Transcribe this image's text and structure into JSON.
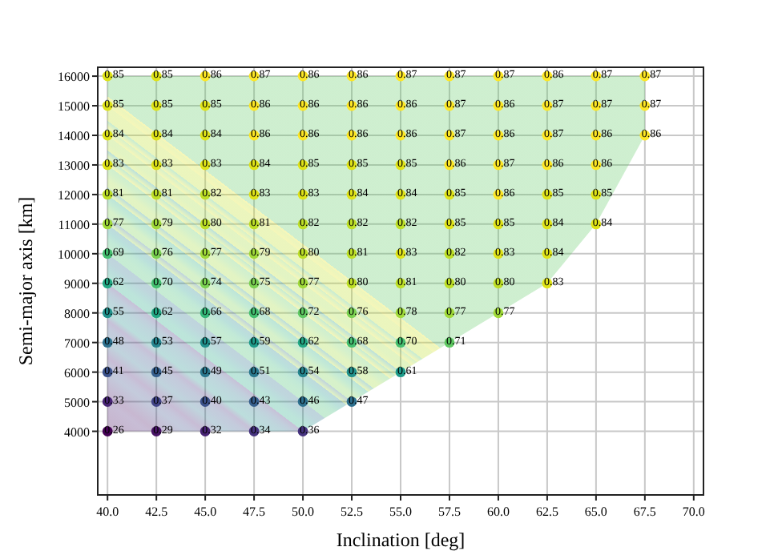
{
  "chart_data": {
    "type": "scatter",
    "xlabel": "Inclination [deg]",
    "ylabel": "Semi-major axis [km]",
    "grid": true,
    "marker": "circle",
    "xlim": [
      39.5,
      70.5
    ],
    "ylim": [
      1850,
      16300
    ],
    "annotations": [
      {
        "text": "0.85",
        "x": 40,
        "y": 16000
      },
      {
        "text": "0.85",
        "x": 42.5,
        "y": 16000
      },
      {
        "text": "0.86",
        "x": 45,
        "y": 16000
      },
      {
        "text": "0.87",
        "x": 47.5,
        "y": 16000
      },
      {
        "text": "0.86",
        "x": 50,
        "y": 16000
      },
      {
        "text": "0.86",
        "x": 52.5,
        "y": 16000
      },
      {
        "text": "0.87",
        "x": 55,
        "y": 16000
      },
      {
        "text": "0.87",
        "x": 57.5,
        "y": 16000
      },
      {
        "text": "0.87",
        "x": 60,
        "y": 16000
      },
      {
        "text": "0.86",
        "x": 62.5,
        "y": 16000
      },
      {
        "text": "0.87",
        "x": 65,
        "y": 16000
      },
      {
        "text": "0.87",
        "x": 67.5,
        "y": 16000
      },
      {
        "text": "0.85",
        "x": 40,
        "y": 15000
      },
      {
        "text": "0.85",
        "x": 42.5,
        "y": 15000
      },
      {
        "text": "0.85",
        "x": 45,
        "y": 15000
      },
      {
        "text": "0.86",
        "x": 47.5,
        "y": 15000
      },
      {
        "text": "0.86",
        "x": 50,
        "y": 15000
      },
      {
        "text": "0.86",
        "x": 52.5,
        "y": 15000
      },
      {
        "text": "0.86",
        "x": 55,
        "y": 15000
      },
      {
        "text": "0.87",
        "x": 57.5,
        "y": 15000
      },
      {
        "text": "0.86",
        "x": 60,
        "y": 15000
      },
      {
        "text": "0.87",
        "x": 62.5,
        "y": 15000
      },
      {
        "text": "0.87",
        "x": 65,
        "y": 15000
      },
      {
        "text": "0.87",
        "x": 67.5,
        "y": 15000
      },
      {
        "text": "0.84",
        "x": 40,
        "y": 14000
      },
      {
        "text": "0.84",
        "x": 42.5,
        "y": 14000
      },
      {
        "text": "0.84",
        "x": 45,
        "y": 14000
      },
      {
        "text": "0.86",
        "x": 47.5,
        "y": 14000
      },
      {
        "text": "0.86",
        "x": 50,
        "y": 14000
      },
      {
        "text": "0.86",
        "x": 52.5,
        "y": 14000
      },
      {
        "text": "0.86",
        "x": 55,
        "y": 14000
      },
      {
        "text": "0.87",
        "x": 57.5,
        "y": 14000
      },
      {
        "text": "0.86",
        "x": 60,
        "y": 14000
      },
      {
        "text": "0.87",
        "x": 62.5,
        "y": 14000
      },
      {
        "text": "0.86",
        "x": 65,
        "y": 14000
      },
      {
        "text": "0.86",
        "x": 67.5,
        "y": 14000
      },
      {
        "text": "0.83",
        "x": 40,
        "y": 13000
      },
      {
        "text": "0.83",
        "x": 42.5,
        "y": 13000
      },
      {
        "text": "0.83",
        "x": 45,
        "y": 13000
      },
      {
        "text": "0.84",
        "x": 47.5,
        "y": 13000
      },
      {
        "text": "0.85",
        "x": 50,
        "y": 13000
      },
      {
        "text": "0.85",
        "x": 52.5,
        "y": 13000
      },
      {
        "text": "0.85",
        "x": 55,
        "y": 13000
      },
      {
        "text": "0.86",
        "x": 57.5,
        "y": 13000
      },
      {
        "text": "0.87",
        "x": 60,
        "y": 13000
      },
      {
        "text": "0.86",
        "x": 62.5,
        "y": 13000
      },
      {
        "text": "0.86",
        "x": 65,
        "y": 13000
      },
      {
        "text": "0.81",
        "x": 40,
        "y": 12000
      },
      {
        "text": "0.81",
        "x": 42.5,
        "y": 12000
      },
      {
        "text": "0.82",
        "x": 45,
        "y": 12000
      },
      {
        "text": "0.83",
        "x": 47.5,
        "y": 12000
      },
      {
        "text": "0.83",
        "x": 50,
        "y": 12000
      },
      {
        "text": "0.84",
        "x": 52.5,
        "y": 12000
      },
      {
        "text": "0.84",
        "x": 55,
        "y": 12000
      },
      {
        "text": "0.85",
        "x": 57.5,
        "y": 12000
      },
      {
        "text": "0.86",
        "x": 60,
        "y": 12000
      },
      {
        "text": "0.85",
        "x": 62.5,
        "y": 12000
      },
      {
        "text": "0.85",
        "x": 65,
        "y": 12000
      },
      {
        "text": "0.77",
        "x": 40,
        "y": 11000
      },
      {
        "text": "0.79",
        "x": 42.5,
        "y": 11000
      },
      {
        "text": "0.80",
        "x": 45,
        "y": 11000
      },
      {
        "text": "0.81",
        "x": 47.5,
        "y": 11000
      },
      {
        "text": "0.82",
        "x": 50,
        "y": 11000
      },
      {
        "text": "0.82",
        "x": 52.5,
        "y": 11000
      },
      {
        "text": "0.82",
        "x": 55,
        "y": 11000
      },
      {
        "text": "0.85",
        "x": 57.5,
        "y": 11000
      },
      {
        "text": "0.85",
        "x": 60,
        "y": 11000
      },
      {
        "text": "0.84",
        "x": 62.5,
        "y": 11000
      },
      {
        "text": "0.84",
        "x": 65,
        "y": 11000
      },
      {
        "text": "0.69",
        "x": 40,
        "y": 10000
      },
      {
        "text": "0.76",
        "x": 42.5,
        "y": 10000
      },
      {
        "text": "0.77",
        "x": 45,
        "y": 10000
      },
      {
        "text": "0.79",
        "x": 47.5,
        "y": 10000
      },
      {
        "text": "0.80",
        "x": 50,
        "y": 10000
      },
      {
        "text": "0.81",
        "x": 52.5,
        "y": 10000
      },
      {
        "text": "0.83",
        "x": 55,
        "y": 10000
      },
      {
        "text": "0.82",
        "x": 57.5,
        "y": 10000
      },
      {
        "text": "0.83",
        "x": 60,
        "y": 10000
      },
      {
        "text": "0.84",
        "x": 62.5,
        "y": 10000
      },
      {
        "text": "0.62",
        "x": 40,
        "y": 9000
      },
      {
        "text": "0.70",
        "x": 42.5,
        "y": 9000
      },
      {
        "text": "0.74",
        "x": 45,
        "y": 9000
      },
      {
        "text": "0.75",
        "x": 47.5,
        "y": 9000
      },
      {
        "text": "0.77",
        "x": 50,
        "y": 9000
      },
      {
        "text": "0.80",
        "x": 52.5,
        "y": 9000
      },
      {
        "text": "0.81",
        "x": 55,
        "y": 9000
      },
      {
        "text": "0.80",
        "x": 57.5,
        "y": 9000
      },
      {
        "text": "0.80",
        "x": 60,
        "y": 9000
      },
      {
        "text": "0.83",
        "x": 62.5,
        "y": 9000
      },
      {
        "text": "0.55",
        "x": 40,
        "y": 8000
      },
      {
        "text": "0.62",
        "x": 42.5,
        "y": 8000
      },
      {
        "text": "0.66",
        "x": 45,
        "y": 8000
      },
      {
        "text": "0.68",
        "x": 47.5,
        "y": 8000
      },
      {
        "text": "0.72",
        "x": 50,
        "y": 8000
      },
      {
        "text": "0.76",
        "x": 52.5,
        "y": 8000
      },
      {
        "text": "0.78",
        "x": 55,
        "y": 8000
      },
      {
        "text": "0.77",
        "x": 57.5,
        "y": 8000
      },
      {
        "text": "0.77",
        "x": 60,
        "y": 8000
      },
      {
        "text": "0.48",
        "x": 40,
        "y": 7000
      },
      {
        "text": "0.53",
        "x": 42.5,
        "y": 7000
      },
      {
        "text": "0.57",
        "x": 45,
        "y": 7000
      },
      {
        "text": "0.59",
        "x": 47.5,
        "y": 7000
      },
      {
        "text": "0.62",
        "x": 50,
        "y": 7000
      },
      {
        "text": "0.68",
        "x": 52.5,
        "y": 7000
      },
      {
        "text": "0.70",
        "x": 55,
        "y": 7000
      },
      {
        "text": "0.71",
        "x": 57.5,
        "y": 7000
      },
      {
        "text": "0.41",
        "x": 40,
        "y": 6000
      },
      {
        "text": "0.45",
        "x": 42.5,
        "y": 6000
      },
      {
        "text": "0.49",
        "x": 45,
        "y": 6000
      },
      {
        "text": "0.51",
        "x": 47.5,
        "y": 6000
      },
      {
        "text": "0.54",
        "x": 50,
        "y": 6000
      },
      {
        "text": "0.58",
        "x": 52.5,
        "y": 6000
      },
      {
        "text": "0.61",
        "x": 55,
        "y": 6000
      },
      {
        "text": "0.33",
        "x": 40,
        "y": 5000
      },
      {
        "text": "0.37",
        "x": 42.5,
        "y": 5000
      },
      {
        "text": "0.40",
        "x": 45,
        "y": 5000
      },
      {
        "text": "0.43",
        "x": 47.5,
        "y": 5000
      },
      {
        "text": "0.46",
        "x": 50,
        "y": 5000
      },
      {
        "text": "0.47",
        "x": 52.5,
        "y": 5000
      },
      {
        "text": "0.26",
        "x": 40,
        "y": 4000
      },
      {
        "text": "0.29",
        "x": 42.5,
        "y": 4000
      },
      {
        "text": "0.32",
        "x": 45,
        "y": 4000
      },
      {
        "text": "0.34",
        "x": 47.5,
        "y": 4000
      },
      {
        "text": "0.36",
        "x": 50,
        "y": 4000
      }
    ],
    "xticks": [
      {
        "value": 40,
        "label": "40.0"
      },
      {
        "value": 42.5,
        "label": "42.5"
      },
      {
        "value": 45,
        "label": "45.0"
      },
      {
        "value": 47.5,
        "label": "47.5"
      },
      {
        "value": 50,
        "label": "50.0"
      },
      {
        "value": 52.5,
        "label": "52.5"
      },
      {
        "value": 55,
        "label": "55.0"
      },
      {
        "value": 57.5,
        "label": "57.5"
      },
      {
        "value": 60,
        "label": "60.0"
      },
      {
        "value": 62.5,
        "label": "62.5"
      },
      {
        "value": 65,
        "label": "65.0"
      },
      {
        "value": 67.5,
        "label": "67.5"
      },
      {
        "value": 70,
        "label": "70.0"
      }
    ],
    "yticks": [
      4000,
      5000,
      6000,
      7000,
      8000,
      9000,
      10000,
      11000,
      12000,
      13000,
      14000,
      15000,
      16000
    ],
    "series": [
      {
        "x": [
          40,
          42.5,
          45,
          47.5,
          50,
          52.5,
          55,
          57.5,
          60,
          62.5,
          65,
          67.5,
          40,
          42.5,
          45,
          47.5,
          50,
          52.5,
          55,
          57.5,
          60,
          62.5,
          65,
          67.5,
          40,
          42.5,
          45,
          47.5,
          50,
          52.5,
          55,
          57.5,
          60,
          62.5,
          65,
          67.5,
          40,
          42.5,
          45,
          47.5,
          50,
          52.5,
          55,
          57.5,
          60,
          62.5,
          65,
          40,
          42.5,
          45,
          47.5,
          50,
          52.5,
          55,
          57.5,
          60,
          62.5,
          65,
          40,
          42.5,
          45,
          47.5,
          50,
          52.5,
          55,
          57.5,
          60,
          62.5,
          65,
          40,
          42.5,
          45,
          47.5,
          50,
          52.5,
          55,
          57.5,
          60,
          62.5,
          40,
          42.5,
          45,
          47.5,
          50,
          52.5,
          55,
          57.5,
          60,
          62.5,
          40,
          42.5,
          45,
          47.5,
          50,
          52.5,
          55,
          57.5,
          60,
          40,
          42.5,
          45,
          47.5,
          50,
          52.5,
          55,
          57.5,
          40,
          42.5,
          45,
          47.5,
          50,
          52.5,
          55,
          40,
          42.5,
          45,
          47.5,
          50,
          52.5,
          40,
          42.5,
          45,
          47.5,
          50
        ],
        "values": [
          16000,
          16000,
          16000,
          16000,
          16000,
          16000,
          16000,
          16000,
          16000,
          16000,
          16000,
          16000,
          15000,
          15000,
          15000,
          15000,
          15000,
          15000,
          15000,
          15000,
          15000,
          15000,
          15000,
          15000,
          14000,
          14000,
          14000,
          14000,
          14000,
          14000,
          14000,
          14000,
          14000,
          14000,
          14000,
          14000,
          13000,
          13000,
          13000,
          13000,
          13000,
          13000,
          13000,
          13000,
          13000,
          13000,
          13000,
          12000,
          12000,
          12000,
          12000,
          12000,
          12000,
          12000,
          12000,
          12000,
          12000,
          12000,
          11000,
          11000,
          11000,
          11000,
          11000,
          11000,
          11000,
          11000,
          11000,
          11000,
          11000,
          10000,
          10000,
          10000,
          10000,
          10000,
          10000,
          10000,
          10000,
          10000,
          10000,
          9000,
          9000,
          9000,
          9000,
          9000,
          9000,
          9000,
          9000,
          9000,
          9000,
          8000,
          8000,
          8000,
          8000,
          8000,
          8000,
          8000,
          8000,
          8000,
          7000,
          7000,
          7000,
          7000,
          7000,
          7000,
          7000,
          7000,
          6000,
          6000,
          6000,
          6000,
          6000,
          6000,
          6000,
          5000,
          5000,
          5000,
          5000,
          5000,
          5000,
          4000,
          4000,
          4000,
          4000,
          4000
        ],
        "colors": [
          "#dfe318",
          "#dfe318",
          "#fde725",
          "#fde725",
          "#fde725",
          "#fde725",
          "#fde725",
          "#fde725",
          "#fde725",
          "#fde725",
          "#fde725",
          "#fde725",
          "#dfe318",
          "#dfe318",
          "#dfe318",
          "#fde725",
          "#fde725",
          "#fde725",
          "#fde725",
          "#fde725",
          "#fde725",
          "#fde725",
          "#fde725",
          "#fde725",
          "#dfe318",
          "#dfe318",
          "#dfe318",
          "#fde725",
          "#fde725",
          "#fde725",
          "#fde725",
          "#fde725",
          "#fde725",
          "#fde725",
          "#fde725",
          "#fde725",
          "#dfe318",
          "#dfe318",
          "#dfe318",
          "#dfe318",
          "#dfe318",
          "#dfe318",
          "#dfe318",
          "#fde725",
          "#fde725",
          "#fde725",
          "#fde725",
          "#bddf26",
          "#bddf26",
          "#bddf26",
          "#dfe318",
          "#dfe318",
          "#dfe318",
          "#dfe318",
          "#dfe318",
          "#fde725",
          "#dfe318",
          "#dfe318",
          "#a0da39",
          "#a0da39",
          "#bddf26",
          "#bddf26",
          "#bddf26",
          "#bddf26",
          "#bddf26",
          "#dfe318",
          "#dfe318",
          "#dfe318",
          "#dfe318",
          "#44bf70",
          "#7ad151",
          "#a0da39",
          "#a0da39",
          "#bddf26",
          "#bddf26",
          "#dfe318",
          "#bddf26",
          "#dfe318",
          "#dfe318",
          "#22a884",
          "#44bf70",
          "#7ad151",
          "#7ad151",
          "#a0da39",
          "#bddf26",
          "#bddf26",
          "#bddf26",
          "#bddf26",
          "#dfe318",
          "#21918c",
          "#22a884",
          "#35b779",
          "#44bf70",
          "#5ec962",
          "#7ad151",
          "#a0da39",
          "#a0da39",
          "#a0da39",
          "#2d708e",
          "#25858e",
          "#21918c",
          "#1e9b8a",
          "#22a884",
          "#44bf70",
          "#44bf70",
          "#5ec962",
          "#3b528b",
          "#355f8d",
          "#2a788e",
          "#2a788e",
          "#25858e",
          "#21918c",
          "#1e9b8a",
          "#482475",
          "#414487",
          "#3b528b",
          "#355f8d",
          "#2d708e",
          "#2d708e",
          "#440154",
          "#471365",
          "#482475",
          "#46337f",
          "#46337f"
        ]
      }
    ]
  }
}
